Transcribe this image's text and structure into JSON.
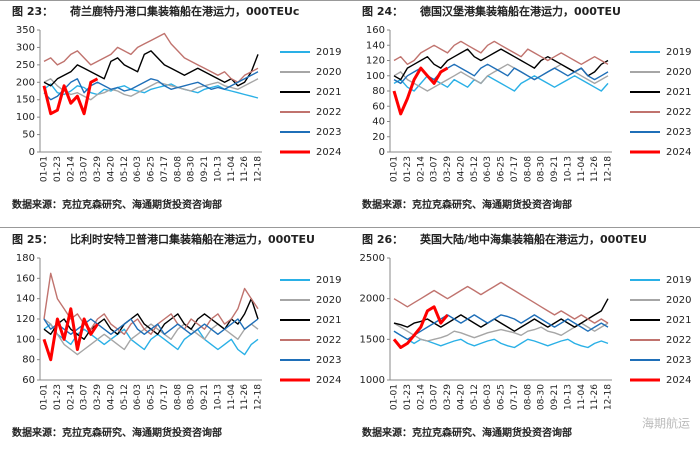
{
  "watermark": "海期航运",
  "chart_data": [
    {
      "type": "line",
      "fig_label": "图 23：",
      "title": "荷兰鹿特丹港口集装箱船在港运力，000TEUc",
      "source": "数据来源：克拉克森研究、海通期货投资咨询部",
      "categories": [
        "01-01",
        null,
        "01-23",
        null,
        "02-14",
        null,
        "03-07",
        null,
        "03-29",
        null,
        "04-20",
        null,
        "05-12",
        null,
        "06-03",
        null,
        "06-25",
        null,
        "07-17",
        null,
        "08-08",
        null,
        "08-30",
        null,
        "09-21",
        null,
        "10-13",
        null,
        "11-04",
        null,
        "11-26",
        null,
        "12-18"
      ],
      "ylim": [
        0,
        350
      ],
      "yticks": [
        0,
        50,
        100,
        150,
        200,
        250,
        300,
        350
      ],
      "series": [
        {
          "name": "2019",
          "color": "#2ab0e6",
          "values": [
            180,
            195,
            170,
            165,
            175,
            190,
            185,
            170,
            165,
            180,
            175,
            185,
            190,
            180,
            175,
            170,
            180,
            185,
            190,
            195,
            185,
            180,
            175,
            170,
            180,
            185,
            190,
            180,
            175,
            170,
            165,
            160,
            155
          ]
        },
        {
          "name": "2020",
          "color": "#a6a6a6",
          "values": [
            200,
            210,
            190,
            175,
            165,
            170,
            160,
            150,
            165,
            170,
            180,
            175,
            165,
            160,
            170,
            180,
            190,
            200,
            195,
            190,
            185,
            180,
            175,
            185,
            190,
            195,
            200,
            190,
            185,
            180,
            190,
            200,
            210
          ]
        },
        {
          "name": "2021",
          "color": "#000000",
          "values": [
            200,
            190,
            210,
            220,
            230,
            250,
            240,
            230,
            220,
            210,
            260,
            270,
            250,
            240,
            230,
            280,
            290,
            270,
            250,
            240,
            230,
            220,
            230,
            240,
            230,
            220,
            210,
            200,
            210,
            190,
            200,
            230,
            280
          ]
        },
        {
          "name": "2022",
          "color": "#c0736e",
          "values": [
            260,
            270,
            250,
            260,
            280,
            290,
            270,
            250,
            260,
            270,
            280,
            300,
            290,
            280,
            300,
            310,
            320,
            330,
            340,
            310,
            290,
            270,
            260,
            250,
            240,
            230,
            220,
            230,
            210,
            200,
            220,
            230,
            240
          ]
        },
        {
          "name": "2023",
          "color": "#1f6fb8",
          "values": [
            170,
            150,
            160,
            180,
            200,
            210,
            170,
            190,
            200,
            190,
            180,
            185,
            175,
            180,
            190,
            200,
            210,
            205,
            190,
            180,
            185,
            190,
            195,
            200,
            190,
            180,
            185,
            180,
            190,
            200,
            210,
            220,
            230
          ]
        },
        {
          "name": "2024",
          "color": "#ff0000",
          "values": [
            190,
            110,
            120,
            190,
            140,
            160,
            110,
            200,
            210,
            null,
            null,
            null,
            null,
            null,
            null,
            null,
            null,
            null,
            null,
            null,
            null,
            null,
            null,
            null,
            null,
            null,
            null,
            null,
            null,
            null,
            null,
            null,
            null
          ]
        }
      ]
    },
    {
      "type": "line",
      "fig_label": "图 24：",
      "title": "德国汉堡港集装箱船在港运力，000TEU",
      "source": "数据来源：克拉克森研究、海通期货投资咨询部",
      "categories": [
        "01-01",
        null,
        "01-23",
        null,
        "02-14",
        null,
        "03-07",
        null,
        "03-29",
        null,
        "04-20",
        null,
        "05-12",
        null,
        "06-03",
        null,
        "06-25",
        null,
        "07-17",
        null,
        "08-08",
        null,
        "08-30",
        null,
        "09-21",
        null,
        "10-13",
        null,
        "11-04",
        null,
        "11-26",
        null,
        "12-18"
      ],
      "ylim": [
        0,
        160
      ],
      "yticks": [
        0,
        20,
        40,
        60,
        80,
        100,
        120,
        140,
        160
      ],
      "series": [
        {
          "name": "2019",
          "color": "#2ab0e6",
          "values": [
            90,
            95,
            85,
            80,
            90,
            100,
            95,
            90,
            85,
            95,
            90,
            85,
            95,
            90,
            100,
            95,
            90,
            85,
            80,
            90,
            95,
            100,
            95,
            90,
            85,
            90,
            95,
            100,
            95,
            90,
            85,
            80,
            90
          ]
        },
        {
          "name": "2020",
          "color": "#a6a6a6",
          "values": [
            100,
            105,
            95,
            90,
            85,
            80,
            85,
            90,
            95,
            100,
            105,
            100,
            95,
            90,
            100,
            105,
            110,
            115,
            110,
            105,
            100,
            95,
            100,
            105,
            110,
            115,
            110,
            105,
            100,
            95,
            90,
            95,
            100
          ]
        },
        {
          "name": "2021",
          "color": "#000000",
          "values": [
            100,
            95,
            110,
            115,
            120,
            125,
            115,
            110,
            120,
            125,
            130,
            135,
            125,
            120,
            125,
            130,
            135,
            130,
            125,
            120,
            115,
            110,
            120,
            125,
            120,
            115,
            110,
            105,
            110,
            100,
            105,
            115,
            120
          ]
        },
        {
          "name": "2022",
          "color": "#c0736e",
          "values": [
            120,
            125,
            115,
            120,
            130,
            135,
            140,
            135,
            130,
            140,
            145,
            140,
            135,
            130,
            140,
            145,
            140,
            135,
            130,
            125,
            135,
            130,
            125,
            120,
            125,
            130,
            125,
            120,
            115,
            120,
            125,
            120,
            115
          ]
        },
        {
          "name": "2023",
          "color": "#1f6fb8",
          "values": [
            95,
            90,
            100,
            105,
            110,
            100,
            95,
            105,
            110,
            115,
            110,
            105,
            100,
            110,
            115,
            110,
            105,
            100,
            110,
            105,
            100,
            95,
            100,
            105,
            110,
            105,
            100,
            105,
            110,
            100,
            95,
            100,
            105
          ]
        },
        {
          "name": "2024",
          "color": "#ff0000",
          "values": [
            80,
            50,
            70,
            95,
            110,
            100,
            90,
            105,
            110,
            null,
            null,
            null,
            null,
            null,
            null,
            null,
            null,
            null,
            null,
            null,
            null,
            null,
            null,
            null,
            null,
            null,
            null,
            null,
            null,
            null,
            null,
            null,
            null
          ]
        }
      ]
    },
    {
      "type": "line",
      "fig_label": "图 25：",
      "title": "比利时安特卫普港口集装箱船在港运力，000TEU",
      "source": "数据来源：克拉克森研究、海通期货投资咨询部",
      "categories": [
        "01-01",
        null,
        "01-23",
        null,
        "02-14",
        null,
        "03-07",
        null,
        "03-29",
        null,
        "04-20",
        null,
        "05-12",
        null,
        "06-03",
        null,
        "06-25",
        null,
        "07-17",
        null,
        "08-08",
        null,
        "08-30",
        null,
        "09-21",
        null,
        "10-13",
        null,
        "11-04",
        null,
        "11-26",
        null,
        "12-18"
      ],
      "ylim": [
        60,
        180
      ],
      "yticks": [
        60,
        80,
        100,
        120,
        140,
        160,
        180
      ],
      "series": [
        {
          "name": "2019",
          "color": "#2ab0e6",
          "values": [
            110,
            115,
            105,
            100,
            95,
            105,
            110,
            105,
            100,
            95,
            100,
            105,
            110,
            100,
            95,
            90,
            100,
            105,
            100,
            95,
            90,
            100,
            105,
            110,
            100,
            95,
            90,
            95,
            100,
            90,
            85,
            95,
            100
          ]
        },
        {
          "name": "2020",
          "color": "#a6a6a6",
          "values": [
            120,
            115,
            105,
            95,
            90,
            85,
            90,
            95,
            100,
            105,
            100,
            95,
            90,
            100,
            105,
            110,
            115,
            110,
            105,
            100,
            110,
            115,
            110,
            105,
            100,
            110,
            115,
            110,
            105,
            100,
            110,
            115,
            110
          ]
        },
        {
          "name": "2021",
          "color": "#000000",
          "values": [
            110,
            105,
            115,
            120,
            110,
            105,
            100,
            110,
            115,
            120,
            110,
            105,
            115,
            120,
            125,
            115,
            110,
            105,
            115,
            120,
            125,
            115,
            110,
            120,
            125,
            120,
            115,
            110,
            120,
            115,
            125,
            140,
            120
          ]
        },
        {
          "name": "2022",
          "color": "#c0736e",
          "values": [
            120,
            165,
            140,
            130,
            120,
            125,
            115,
            110,
            120,
            125,
            115,
            110,
            105,
            115,
            120,
            110,
            105,
            115,
            120,
            125,
            115,
            110,
            120,
            115,
            110,
            120,
            125,
            115,
            120,
            130,
            150,
            140,
            130
          ]
        },
        {
          "name": "2023",
          "color": "#1f6fb8",
          "values": [
            120,
            110,
            115,
            110,
            105,
            110,
            115,
            120,
            115,
            110,
            105,
            110,
            115,
            120,
            110,
            105,
            110,
            115,
            105,
            110,
            115,
            110,
            105,
            110,
            115,
            110,
            105,
            110,
            115,
            120,
            110,
            115,
            120
          ]
        },
        {
          "name": "2024",
          "color": "#ff0000",
          "values": [
            100,
            80,
            120,
            100,
            130,
            90,
            120,
            105,
            115,
            null,
            null,
            null,
            null,
            null,
            null,
            null,
            null,
            null,
            null,
            null,
            null,
            null,
            null,
            null,
            null,
            null,
            null,
            null,
            null,
            null,
            null,
            null,
            null
          ]
        }
      ]
    },
    {
      "type": "line",
      "fig_label": "图 26：",
      "title": "英国大陆/地中海集装箱船在港运力，000TEU",
      "source": "数据来源：克拉克森研究、海通期货投资咨询部",
      "categories": [
        "01-01",
        null,
        "01-23",
        null,
        "02-14",
        null,
        "03-07",
        null,
        "03-29",
        null,
        "04-20",
        null,
        "05-12",
        null,
        "06-03",
        null,
        "06-25",
        null,
        "07-17",
        null,
        "08-08",
        null,
        "08-30",
        null,
        "09-21",
        null,
        "10-13",
        null,
        "11-04",
        null,
        "11-26",
        null,
        "12-18"
      ],
      "ylim": [
        1000,
        2500
      ],
      "yticks": [
        1000,
        1500,
        2000,
        2500
      ],
      "series": [
        {
          "name": "2019",
          "color": "#2ab0e6",
          "values": [
            1600,
            1550,
            1500,
            1450,
            1500,
            1480,
            1450,
            1420,
            1450,
            1480,
            1500,
            1450,
            1420,
            1450,
            1480,
            1500,
            1450,
            1420,
            1400,
            1450,
            1500,
            1480,
            1450,
            1420,
            1450,
            1480,
            1500,
            1450,
            1420,
            1400,
            1450,
            1480,
            1450
          ]
        },
        {
          "name": "2020",
          "color": "#a6a6a6",
          "values": [
            1700,
            1650,
            1600,
            1550,
            1500,
            1480,
            1500,
            1520,
            1550,
            1600,
            1580,
            1550,
            1520,
            1550,
            1580,
            1600,
            1620,
            1600,
            1580,
            1550,
            1600,
            1620,
            1650,
            1600,
            1580,
            1550,
            1600,
            1650,
            1700,
            1650,
            1600,
            1650,
            1700
          ]
        },
        {
          "name": "2021",
          "color": "#000000",
          "values": [
            1700,
            1680,
            1650,
            1700,
            1720,
            1750,
            1700,
            1650,
            1700,
            1750,
            1800,
            1750,
            1700,
            1650,
            1700,
            1750,
            1700,
            1650,
            1600,
            1650,
            1700,
            1750,
            1700,
            1650,
            1700,
            1750,
            1700,
            1650,
            1700,
            1750,
            1800,
            1850,
            2000
          ]
        },
        {
          "name": "2022",
          "color": "#c0736e",
          "values": [
            2000,
            1950,
            1900,
            1950,
            2000,
            2050,
            2100,
            2050,
            2000,
            2050,
            2100,
            2150,
            2100,
            2050,
            2100,
            2150,
            2200,
            2150,
            2100,
            2050,
            2000,
            1950,
            1900,
            1850,
            1800,
            1850,
            1800,
            1750,
            1800,
            1750,
            1700,
            1750,
            1700
          ]
        },
        {
          "name": "2023",
          "color": "#1f6fb8",
          "values": [
            1600,
            1550,
            1500,
            1550,
            1600,
            1650,
            1700,
            1750,
            1800,
            1750,
            1700,
            1750,
            1800,
            1750,
            1700,
            1750,
            1800,
            1780,
            1750,
            1700,
            1750,
            1800,
            1750,
            1700,
            1650,
            1700,
            1750,
            1700,
            1650,
            1600,
            1650,
            1700,
            1650
          ]
        },
        {
          "name": "2024",
          "color": "#ff0000",
          "values": [
            1500,
            1400,
            1450,
            1550,
            1650,
            1850,
            1900,
            1700,
            1800,
            null,
            null,
            null,
            null,
            null,
            null,
            null,
            null,
            null,
            null,
            null,
            null,
            null,
            null,
            null,
            null,
            null,
            null,
            null,
            null,
            null,
            null,
            null,
            null
          ]
        }
      ]
    }
  ]
}
